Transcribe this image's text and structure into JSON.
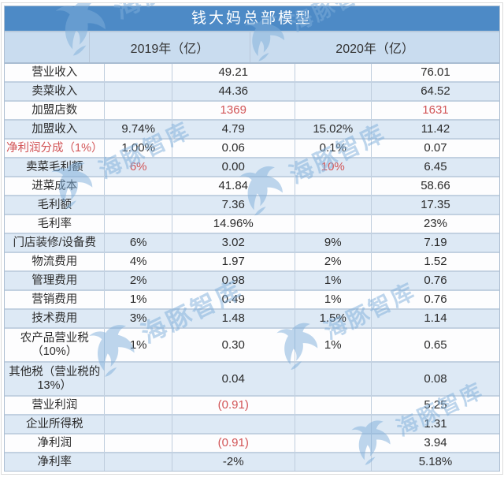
{
  "ui": {
    "title": "钱大妈总部模型",
    "year_headers": [
      "2019年（亿）",
      "2020年（亿）"
    ],
    "watermark_text": "海豚智库",
    "colors": {
      "title_bg": "#4d8ac6",
      "header_bg": "#c9dcef",
      "row_alt_bg": "#dde9f5",
      "row_bg": "#fdfdfe",
      "red_text": "#d25456",
      "watermark": "#7fafdb"
    }
  },
  "chart_data": {
    "type": "table",
    "title": "钱大妈总部模型",
    "columns": [
      "label",
      "2019_pct",
      "2019_value",
      "2020_pct",
      "2020_value"
    ],
    "column_headers_visible": [
      "",
      "2019年（亿）",
      "2020年（亿）"
    ],
    "rows": [
      {
        "cells": [
          "营业收入",
          "",
          "49.21",
          "",
          "76.01"
        ],
        "red": [
          0,
          0,
          0,
          0,
          0
        ]
      },
      {
        "cells": [
          "卖菜收入",
          "",
          "44.36",
          "",
          "64.52"
        ],
        "red": [
          0,
          0,
          0,
          0,
          0
        ]
      },
      {
        "cells": [
          "加盟店数",
          "",
          "1369",
          "",
          "1631"
        ],
        "red": [
          0,
          0,
          1,
          0,
          1
        ]
      },
      {
        "cells": [
          "加盟收入",
          "9.74%",
          "4.79",
          "15.02%",
          "11.42"
        ],
        "red": [
          0,
          0,
          0,
          0,
          0
        ]
      },
      {
        "cells": [
          "净利润分成（1%）",
          "1.00%",
          "0.06",
          "0.1%",
          "0.07"
        ],
        "red": [
          1,
          0,
          0,
          0,
          0
        ]
      },
      {
        "cells": [
          "卖菜毛利额",
          "6%",
          "0.00",
          "10%",
          "6.45"
        ],
        "red": [
          0,
          1,
          0,
          1,
          0
        ]
      },
      {
        "cells": [
          "进菜成本",
          "",
          "41.84",
          "",
          "58.66"
        ],
        "red": [
          0,
          0,
          0,
          0,
          0
        ]
      },
      {
        "cells": [
          "毛利额",
          "",
          "7.36",
          "",
          "17.35"
        ],
        "red": [
          0,
          0,
          0,
          0,
          0
        ]
      },
      {
        "cells": [
          "毛利率",
          "",
          "14.96%",
          "",
          "23%"
        ],
        "red": [
          0,
          0,
          0,
          0,
          0
        ]
      },
      {
        "cells": [
          "门店装修/设备费",
          "6%",
          "3.02",
          "9%",
          "7.19"
        ],
        "red": [
          0,
          0,
          0,
          0,
          0
        ]
      },
      {
        "cells": [
          "物流费用",
          "4%",
          "1.97",
          "2%",
          "1.52"
        ],
        "red": [
          0,
          0,
          0,
          0,
          0
        ]
      },
      {
        "cells": [
          "管理费用",
          "2%",
          "0.98",
          "1%",
          "0.76"
        ],
        "red": [
          0,
          0,
          0,
          0,
          0
        ]
      },
      {
        "cells": [
          "营销费用",
          "1%",
          "0.49",
          "1%",
          "0.76"
        ],
        "red": [
          0,
          0,
          0,
          0,
          0
        ]
      },
      {
        "cells": [
          "技术费用",
          "3%",
          "1.48",
          "1.5%",
          "1.14"
        ],
        "red": [
          0,
          0,
          0,
          0,
          0
        ]
      },
      {
        "cells": [
          "农产品营业税（10%）",
          "1%",
          "0.30",
          "1%",
          "0.65"
        ],
        "red": [
          0,
          0,
          0,
          0,
          0
        ],
        "tall": true
      },
      {
        "cells": [
          "其他税（营业税的13%）",
          "",
          "0.04",
          "",
          "0.08"
        ],
        "red": [
          0,
          0,
          0,
          0,
          0
        ],
        "tall": true
      },
      {
        "cells": [
          "营业利润",
          "",
          "(0.91)",
          "",
          "5.25"
        ],
        "red": [
          0,
          0,
          1,
          0,
          0
        ]
      },
      {
        "cells": [
          "企业所得税",
          "",
          "",
          "",
          "1.31"
        ],
        "red": [
          0,
          0,
          0,
          0,
          0
        ]
      },
      {
        "cells": [
          "净利润",
          "",
          "(0.91)",
          "",
          "3.94"
        ],
        "red": [
          0,
          0,
          1,
          0,
          0
        ]
      },
      {
        "cells": [
          "净利率",
          "",
          "-2%",
          "",
          "5.18%"
        ],
        "red": [
          0,
          0,
          0,
          0,
          0
        ]
      }
    ]
  }
}
